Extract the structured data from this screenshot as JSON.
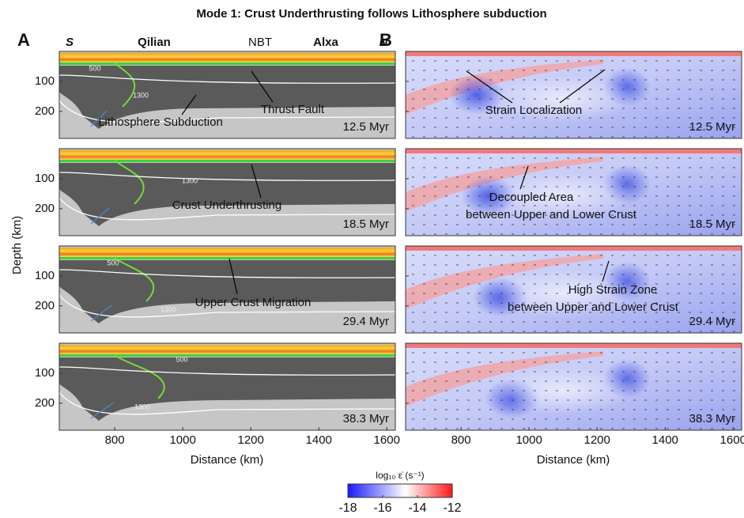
{
  "title": "Mode 1: Crust Underthrusting follows Lithosphere subduction",
  "panel_labels": [
    "A",
    "B"
  ],
  "top_labels": [
    "S",
    "Qilian",
    "NBT",
    "Alxa",
    "N"
  ],
  "axes": {
    "xlabel": "Distance (km)",
    "ylabel": "Depth (km)",
    "xlim": [
      637,
      1625
    ],
    "xticks": [
      800,
      1000,
      1200,
      1400,
      1600
    ],
    "ylim": [
      0,
      290
    ],
    "yticks": [
      100,
      200
    ]
  },
  "rows": [
    {
      "time": "12.5 Myr",
      "contour_labels": [
        "500",
        "1300"
      ],
      "left_annotations": [
        [
          "Lithosphere Subduction"
        ],
        [
          "Thrust Fault"
        ]
      ],
      "right_annotations": [
        [
          "Strain Localization"
        ]
      ]
    },
    {
      "time": "18.5 Myr",
      "contour_labels": [
        "1300"
      ],
      "left_annotations": [
        [
          "Crust Underthrusting"
        ]
      ],
      "right_annotations": [
        [
          "Decoupled Area",
          "between Upper and Lower Crust"
        ]
      ]
    },
    {
      "time": "29.4 Myr",
      "contour_labels": [
        "500",
        "1300"
      ],
      "left_annotations": [
        [
          "Upper Crust Migration"
        ]
      ],
      "right_annotations": [
        [
          "High Strain Zone",
          "between Upper and Lower Crust"
        ]
      ]
    },
    {
      "time": "38.3 Myr",
      "contour_labels": [
        "500",
        "1300"
      ],
      "left_annotations": [],
      "right_annotations": []
    }
  ],
  "colorbar": {
    "label": "log₁₀ ε̇ (s⁻¹)",
    "lim": [
      -18,
      -12
    ],
    "ticks": [
      -18,
      -16,
      -14,
      -12
    ]
  }
}
